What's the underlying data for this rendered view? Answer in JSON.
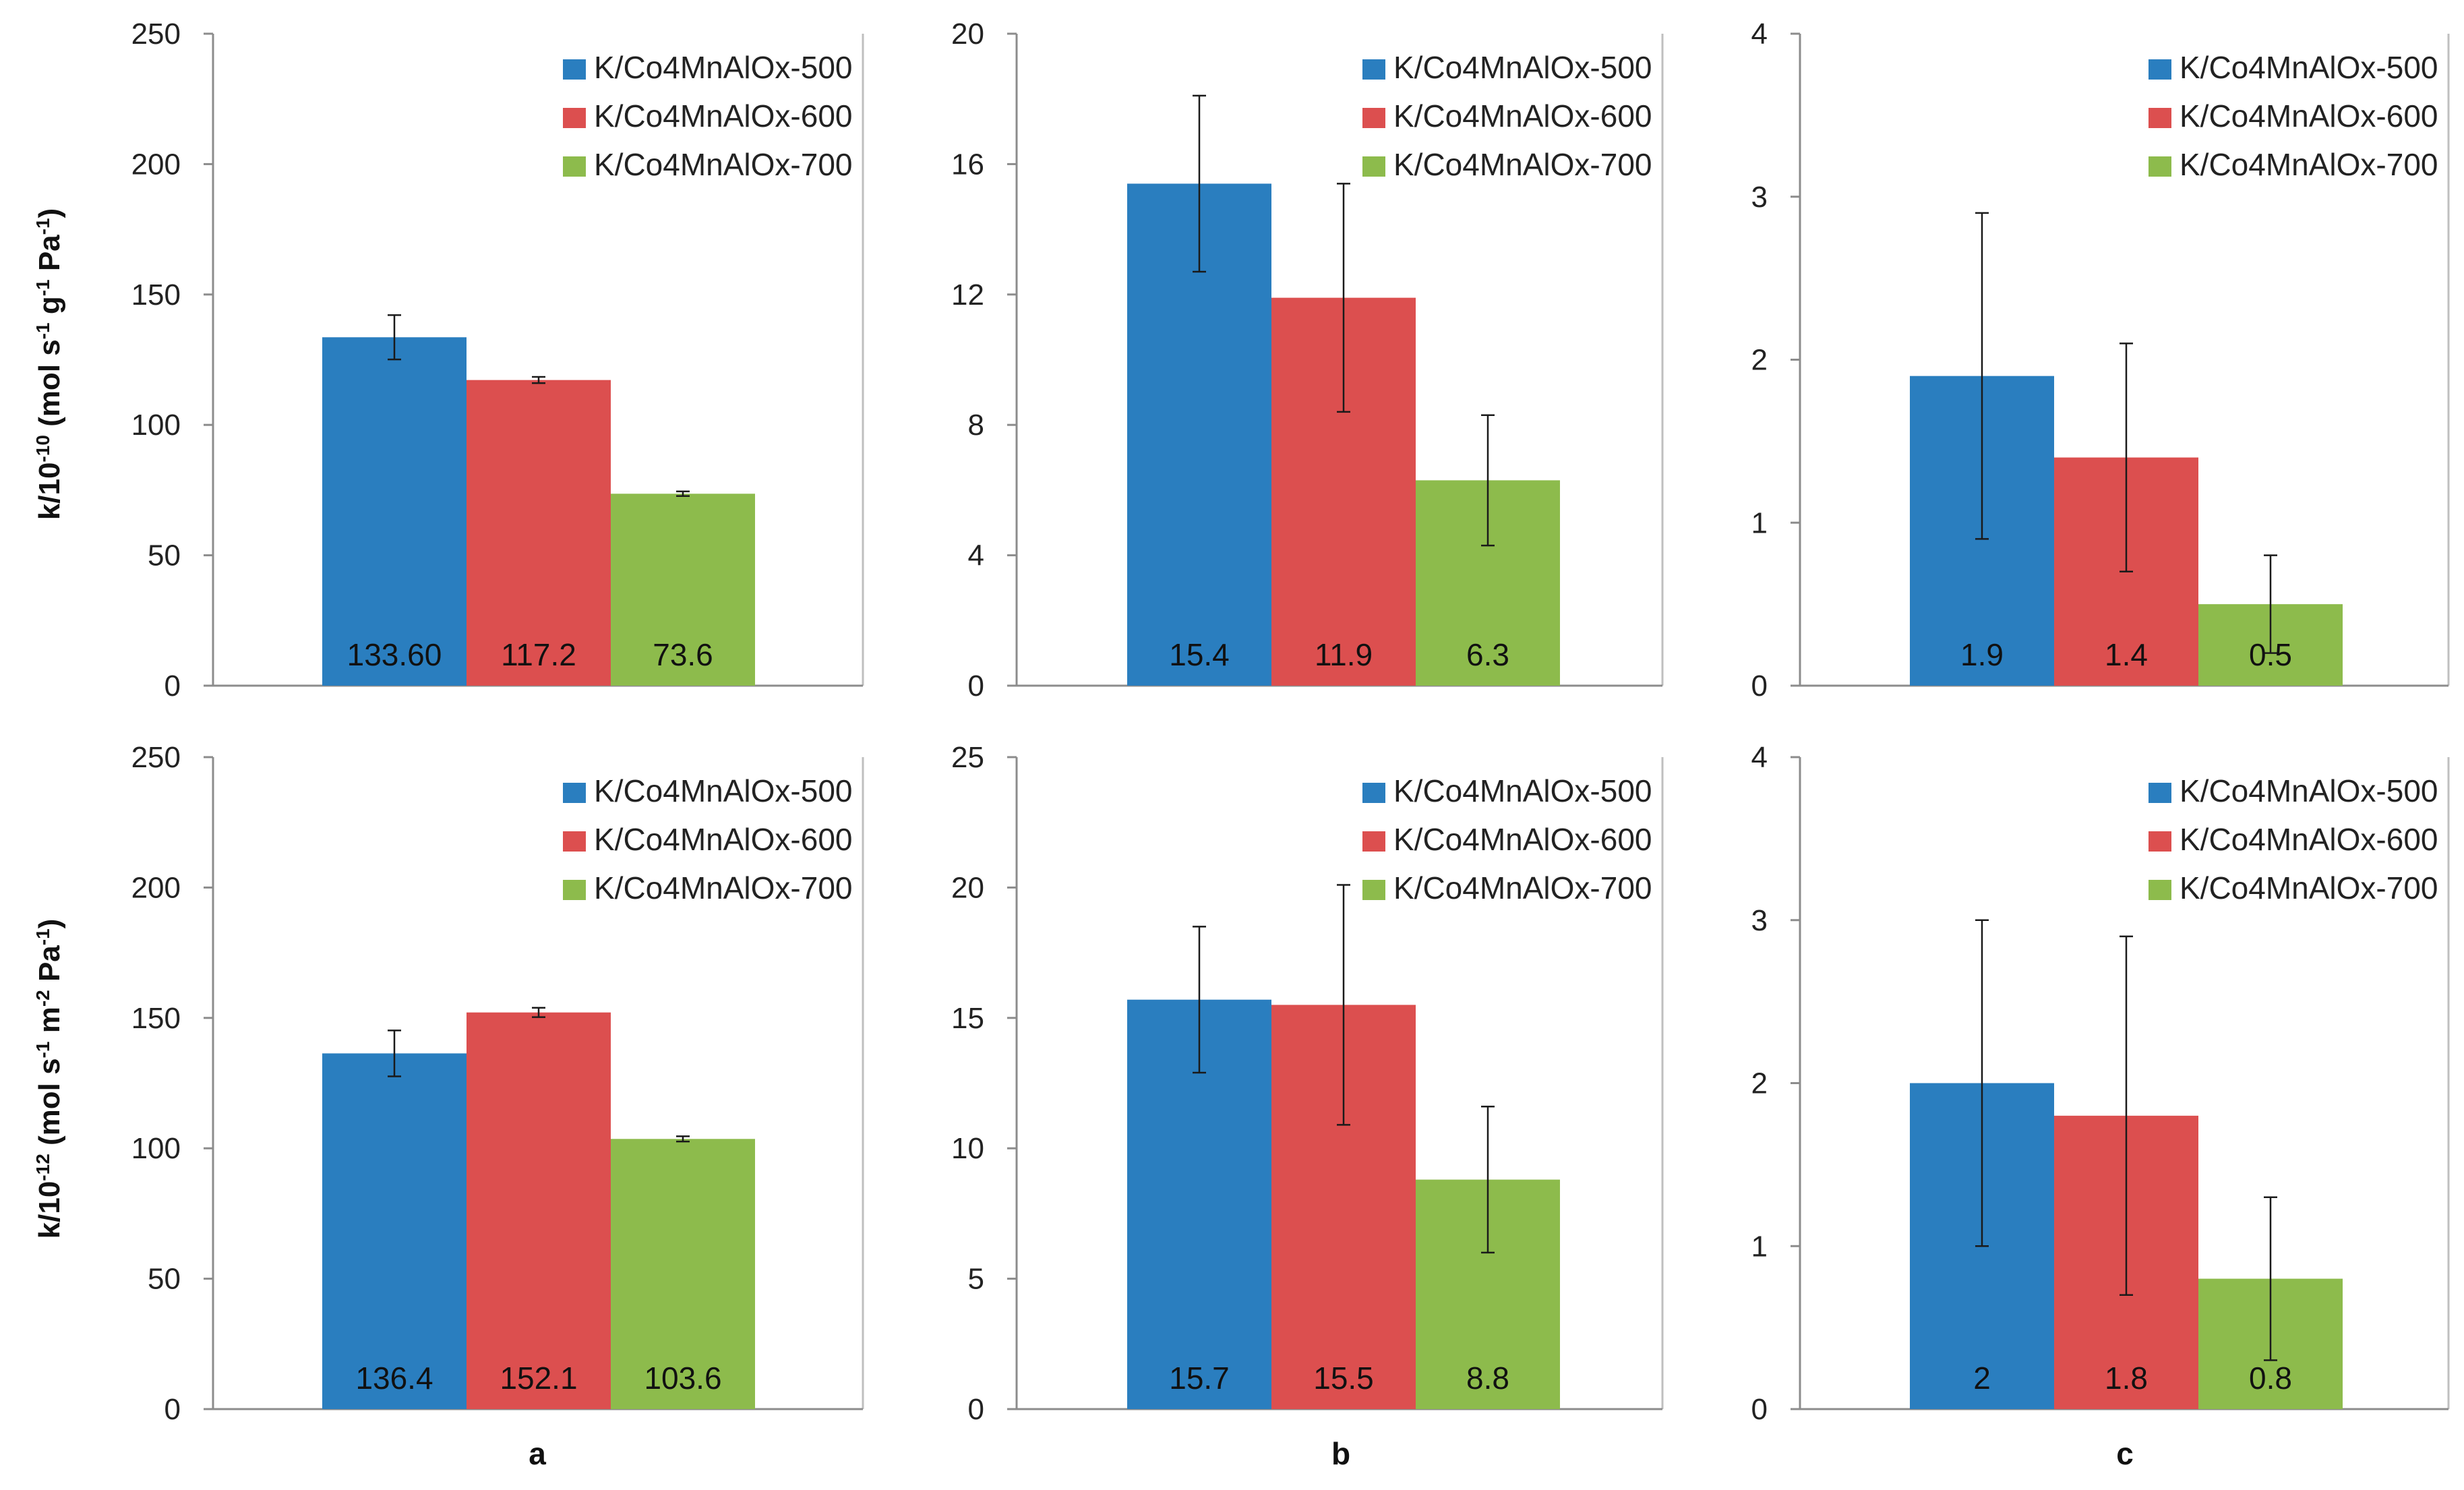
{
  "colors": {
    "s500": "#2a7ebf",
    "s600": "#dc4f4f",
    "s700": "#8dbb4c"
  },
  "panel_letters": [
    "a",
    "b",
    "c"
  ],
  "y_labels": {
    "row1": {
      "main": "k/10",
      "sup1": "-10",
      "mid1": " (mol s",
      "sup2": "-1",
      "mid2": " g",
      "sup3": "-1",
      "mid3": " Pa",
      "sup4": "-1",
      "end": ")"
    },
    "row2": {
      "main": "k/10",
      "sup1": "-12",
      "mid1": " (mol s",
      "sup2": "-1",
      "mid2": " m",
      "sup3": "-2",
      "mid3": " Pa",
      "sup4": "-1",
      "end": ")"
    }
  },
  "chart_data": [
    {
      "type": "bar",
      "row": 1,
      "col": 1,
      "categories": [
        "K/Co4MnAlOx-500",
        "K/Co4MnAlOx-600",
        "K/Co4MnAlOx-700"
      ],
      "values": [
        133.6,
        117.2,
        73.6
      ],
      "data_labels": [
        "133.60",
        "117.2",
        "73.6"
      ],
      "errors": [
        8.5,
        1.2,
        0.9
      ],
      "ylim": [
        0,
        250
      ],
      "yticks": [
        0,
        50,
        100,
        150,
        200,
        250
      ],
      "ytick_labels": [
        "0",
        "50",
        "100",
        "150",
        "200",
        "250"
      ],
      "legend": [
        "K/Co4MnAlOx-500",
        "K/Co4MnAlOx-600",
        "K/Co4MnAlOx-700"
      ],
      "legend_position": "top-right"
    },
    {
      "type": "bar",
      "row": 1,
      "col": 2,
      "categories": [
        "K/Co4MnAlOx-500",
        "K/Co4MnAlOx-600",
        "K/Co4MnAlOx-700"
      ],
      "values": [
        15.4,
        11.9,
        6.3
      ],
      "data_labels": [
        "15.4",
        "11.9",
        "6.3"
      ],
      "errors": [
        2.7,
        3.5,
        2.0
      ],
      "ylim": [
        0,
        20
      ],
      "yticks": [
        0,
        4,
        8,
        12,
        16,
        20
      ],
      "ytick_labels": [
        "0",
        "4",
        "8",
        "12",
        "16",
        "20"
      ],
      "legend": [
        "K/Co4MnAlOx-500",
        "K/Co4MnAlOx-600",
        "K/Co4MnAlOx-700"
      ],
      "legend_position": "top-right"
    },
    {
      "type": "bar",
      "row": 1,
      "col": 3,
      "categories": [
        "K/Co4MnAlOx-500",
        "K/Co4MnAlOx-600",
        "K/Co4MnAlOx-700"
      ],
      "values": [
        1.9,
        1.4,
        0.5
      ],
      "data_labels": [
        "1.9",
        "1.4",
        "0.5"
      ],
      "errors": [
        1.0,
        0.7,
        0.3
      ],
      "ylim": [
        0,
        4
      ],
      "yticks": [
        0,
        1,
        2,
        3,
        4
      ],
      "ytick_labels": [
        "0",
        "1",
        "2",
        "3",
        "4"
      ],
      "legend": [
        "K/Co4MnAlOx-500",
        "K/Co4MnAlOx-600",
        "K/Co4MnAlOx-700"
      ],
      "legend_position": "top-right"
    },
    {
      "type": "bar",
      "row": 2,
      "col": 1,
      "categories": [
        "K/Co4MnAlOx-500",
        "K/Co4MnAlOx-600",
        "K/Co4MnAlOx-700"
      ],
      "values": [
        136.4,
        152.1,
        103.6
      ],
      "data_labels": [
        "136.4",
        "152.1",
        "103.6"
      ],
      "errors": [
        8.8,
        1.8,
        1.0
      ],
      "ylim": [
        0,
        250
      ],
      "yticks": [
        0,
        50,
        100,
        150,
        200,
        250
      ],
      "ytick_labels": [
        "0",
        "50",
        "100",
        "150",
        "200",
        "250"
      ],
      "legend": [
        "K/Co4MnAlOx-500",
        "K/Co4MnAlOx-600",
        "K/Co4MnAlOx-700"
      ],
      "legend_position": "top-right"
    },
    {
      "type": "bar",
      "row": 2,
      "col": 2,
      "categories": [
        "K/Co4MnAlOx-500",
        "K/Co4MnAlOx-600",
        "K/Co4MnAlOx-700"
      ],
      "values": [
        15.7,
        15.5,
        8.8
      ],
      "data_labels": [
        "15.7",
        "15.5",
        "8.8"
      ],
      "errors": [
        2.8,
        4.6,
        2.8
      ],
      "ylim": [
        0,
        25
      ],
      "yticks": [
        0,
        5,
        10,
        15,
        20,
        25
      ],
      "ytick_labels": [
        "0",
        "5",
        "10",
        "15",
        "20",
        "25"
      ],
      "legend": [
        "K/Co4MnAlOx-500",
        "K/Co4MnAlOx-600",
        "K/Co4MnAlOx-700"
      ],
      "legend_position": "top-right"
    },
    {
      "type": "bar",
      "row": 2,
      "col": 3,
      "categories": [
        "K/Co4MnAlOx-500",
        "K/Co4MnAlOx-600",
        "K/Co4MnAlOx-700"
      ],
      "values": [
        2,
        1.8,
        0.8
      ],
      "data_labels": [
        "2",
        "1.8",
        "0.8"
      ],
      "errors": [
        1.0,
        1.1,
        0.5
      ],
      "ylim": [
        0,
        4
      ],
      "yticks": [
        0,
        1,
        2,
        3,
        4
      ],
      "ytick_labels": [
        "0",
        "1",
        "2",
        "3",
        "4"
      ],
      "legend": [
        "K/Co4MnAlOx-500",
        "K/Co4MnAlOx-600",
        "K/Co4MnAlOx-700"
      ],
      "legend_position": "top-right"
    }
  ]
}
